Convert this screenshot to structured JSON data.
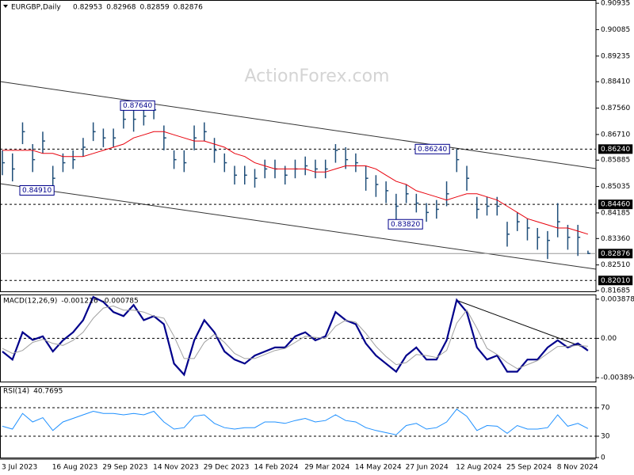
{
  "chart_data": [
    {
      "type": "ohlc",
      "title": "EURGBP,Daily",
      "quote": [
        0.82953,
        0.82968,
        0.82859,
        0.82876
      ],
      "watermark": "ActionForex.com",
      "categories": [
        "3 Jul 2023",
        null,
        null,
        null,
        null,
        "16 Aug 2023",
        null,
        null,
        null,
        null,
        "29 Sep 2023",
        null,
        null,
        null,
        null,
        "14 Nov 2023",
        null,
        null,
        null,
        null,
        "29 Dec 2023",
        null,
        null,
        null,
        null,
        "14 Feb 2024",
        null,
        null,
        null,
        null,
        "29 Mar 2024",
        null,
        null,
        null,
        null,
        "14 May 2024",
        null,
        null,
        null,
        null,
        "27 Jun 2024",
        null,
        null,
        null,
        null,
        "12 Aug 2024",
        null,
        null,
        null,
        null,
        "25 Sep 2024",
        null,
        null,
        null,
        null,
        "8 Nov 2024",
        null,
        null,
        null
      ],
      "high": [
        0.862,
        0.861,
        0.871,
        0.864,
        0.868,
        0.857,
        0.861,
        0.862,
        0.866,
        0.871,
        0.869,
        0.869,
        0.875,
        0.875,
        0.876,
        0.8764,
        0.87,
        0.862,
        0.862,
        0.87,
        0.871,
        0.866,
        0.861,
        0.857,
        0.857,
        0.856,
        0.859,
        0.859,
        0.857,
        0.859,
        0.86,
        0.859,
        0.859,
        0.864,
        0.863,
        0.861,
        0.857,
        0.854,
        0.852,
        0.848,
        0.851,
        0.848,
        0.845,
        0.846,
        0.852,
        0.8624,
        0.857,
        0.847,
        0.847,
        0.847,
        0.839,
        0.842,
        0.84,
        0.837,
        0.836,
        0.845,
        0.838,
        0.838,
        0.8297
      ],
      "low": [
        0.854,
        0.852,
        0.864,
        0.855,
        0.861,
        0.8491,
        0.855,
        0.856,
        0.86,
        0.865,
        0.863,
        0.863,
        0.869,
        0.868,
        0.87,
        0.872,
        0.862,
        0.856,
        0.855,
        0.862,
        0.865,
        0.858,
        0.855,
        0.851,
        0.851,
        0.85,
        0.853,
        0.853,
        0.851,
        0.853,
        0.854,
        0.853,
        0.853,
        0.858,
        0.856,
        0.855,
        0.849,
        0.847,
        0.845,
        0.8382,
        0.845,
        0.842,
        0.839,
        0.84,
        0.844,
        0.855,
        0.849,
        0.84,
        0.841,
        0.841,
        0.831,
        0.836,
        0.833,
        0.83,
        0.827,
        0.834,
        0.83,
        0.828,
        0.8286
      ],
      "close": [
        0.858,
        0.856,
        0.868,
        0.859,
        0.865,
        0.853,
        0.858,
        0.859,
        0.863,
        0.868,
        0.866,
        0.866,
        0.872,
        0.872,
        0.873,
        0.875,
        0.866,
        0.859,
        0.858,
        0.866,
        0.868,
        0.862,
        0.858,
        0.854,
        0.854,
        0.853,
        0.856,
        0.856,
        0.854,
        0.856,
        0.857,
        0.856,
        0.856,
        0.862,
        0.859,
        0.858,
        0.853,
        0.851,
        0.849,
        0.844,
        0.848,
        0.845,
        0.842,
        0.843,
        0.848,
        0.859,
        0.853,
        0.843,
        0.844,
        0.844,
        0.835,
        0.839,
        0.837,
        0.834,
        0.833,
        0.839,
        0.834,
        0.834,
        0.8288
      ],
      "bar_color": "#1f4e79",
      "ma": {
        "color": "#e8000b",
        "values": [
          0.862,
          0.862,
          0.862,
          0.862,
          0.861,
          0.861,
          0.86,
          0.86,
          0.86,
          0.861,
          0.862,
          0.863,
          0.864,
          0.866,
          0.867,
          0.868,
          0.868,
          0.867,
          0.866,
          0.865,
          0.865,
          0.864,
          0.863,
          0.861,
          0.86,
          0.858,
          0.857,
          0.856,
          0.856,
          0.856,
          0.856,
          0.855,
          0.855,
          0.856,
          0.857,
          0.857,
          0.857,
          0.856,
          0.854,
          0.852,
          0.851,
          0.849,
          0.848,
          0.847,
          0.846,
          0.847,
          0.848,
          0.848,
          0.847,
          0.846,
          0.844,
          0.842,
          0.84,
          0.839,
          0.838,
          0.837,
          0.837,
          0.836,
          0.835
        ]
      },
      "ylim": [
        0.8166,
        0.9104
      ],
      "yticks": [
        0.90935,
        0.90085,
        0.89235,
        {
          "value": 0.8841,
          "label": "0.88410"
        },
        {
          "value": 0.8756,
          "label": "0.87560"
        },
        {
          "value": 0.8671,
          "label": "0.86710"
        },
        0.85885,
        0.85035,
        0.84185,
        {
          "value": 0.8336,
          "label": "0.83360"
        },
        {
          "value": 0.8251,
          "label": "0.82510"
        },
        0.81685
      ],
      "levels": [
        {
          "value": 0.8624,
          "label": "0.86240"
        },
        {
          "value": 0.8446,
          "label": "0.84460"
        },
        {
          "value": 0.8201,
          "label": "0.82010"
        }
      ],
      "annotations": [
        {
          "value": 0.8764,
          "label": "0.87640"
        },
        {
          "value": 0.8491,
          "label": "0.84910"
        },
        {
          "value": 0.8624,
          "label": "0.86240"
        },
        {
          "value": 0.8382,
          "label": "0.83820"
        }
      ]
    },
    {
      "type": "macd",
      "title": "MACD(12,26,9)",
      "series": [
        {
          "color": "#00008b",
          "values": [
            -0.0013,
            -0.0021,
            0.0006,
            -0.00016,
            0.0002,
            -0.0013,
            -0.0002,
            0.0006,
            0.0018,
            0.0041,
            0.0036,
            0.0026,
            0.0022,
            0.0033,
            0.0018,
            0.0022,
            0.0014,
            -0.0025,
            -0.0036,
            -0.0002,
            0.0018,
            0.0006,
            -0.0013,
            -0.0021,
            -0.0025,
            -0.0017,
            -0.0013,
            -0.0009,
            -0.0009,
            0.0002,
            0.0006,
            -0.0002,
            0.0002,
            0.0026,
            0.0018,
            0.0014,
            -0.0005,
            -0.0017,
            -0.0025,
            -0.0033,
            -0.0017,
            -0.0009,
            -0.0021,
            -0.0021,
            -0.0002,
            0.0038,
            0.0026,
            -0.0009,
            -0.0021,
            -0.0017,
            -0.0033,
            -0.0033,
            -0.0021,
            -0.0021,
            -0.0009,
            -0.0002,
            -0.0009,
            -0.0005,
            -0.001216
          ]
        },
        {
          "color": "#a0a0a0",
          "values": [
            -0.001,
            -0.0015,
            -0.0012,
            -0.0004,
            -0.0001,
            -0.0005,
            -0.0007,
            -0.0002,
            0.0006,
            0.002,
            0.003,
            0.0032,
            0.0028,
            0.0028,
            0.0026,
            0.0022,
            0.002,
            0.0002,
            -0.002,
            -0.002,
            -0.0004,
            0.0004,
            -0.0004,
            -0.0015,
            -0.002,
            -0.002,
            -0.0016,
            -0.0012,
            -0.001,
            -0.0004,
            0.0002,
            0.0001,
            0,
            0.0012,
            0.0018,
            0.0016,
            0.0005,
            -0.0008,
            -0.0018,
            -0.0026,
            -0.0024,
            -0.0016,
            -0.0017,
            -0.0019,
            -0.0012,
            0.0015,
            0.0028,
            0.001,
            -0.001,
            -0.0016,
            -0.0024,
            -0.003,
            -0.0026,
            -0.0022,
            -0.0015,
            -0.0008,
            -0.0008,
            -0.0007,
            -0.000785
          ]
        }
      ],
      "ylim": [
        -0.00428,
        0.00434
      ],
      "yticks": [
        0.003878,
        {
          "value": 0,
          "label": "0.00"
        },
        -0.003894
      ]
    },
    {
      "type": "rsi",
      "title": "RSI(14)",
      "color": "#1e90ff",
      "values": [
        44,
        40,
        62,
        50,
        56,
        38,
        50,
        55,
        60,
        65,
        62,
        62,
        60,
        62,
        60,
        65,
        50,
        40,
        42,
        58,
        60,
        48,
        42,
        40,
        42,
        42,
        50,
        50,
        48,
        52,
        55,
        50,
        52,
        60,
        52,
        50,
        42,
        38,
        35,
        32,
        45,
        48,
        40,
        42,
        50,
        68,
        58,
        38,
        45,
        44,
        34,
        45,
        40,
        40,
        42,
        60,
        44,
        48,
        40.7695
      ],
      "ylim": [
        0,
        100
      ],
      "yticks": [
        0,
        30,
        70
      ]
    }
  ]
}
